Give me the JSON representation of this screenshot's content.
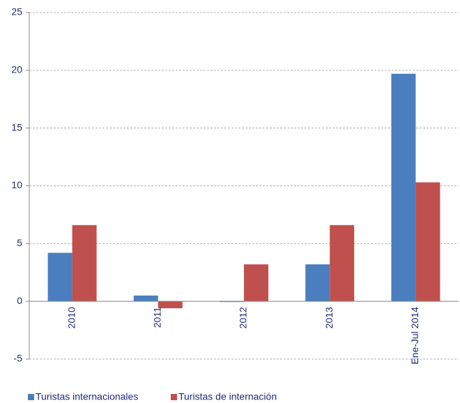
{
  "chart_data": {
    "type": "bar",
    "categories": [
      "2010",
      "2011",
      "2012",
      "2013",
      "Ene-Jul 2014"
    ],
    "series": [
      {
        "name": "Turistas internacionales",
        "color": "#4a7ebf",
        "values": [
          4.2,
          0.5,
          0.0,
          3.2,
          19.7
        ]
      },
      {
        "name": "Turistas de internación",
        "color": "#c0504d",
        "values": [
          6.6,
          -0.6,
          3.2,
          6.6,
          10.3
        ]
      }
    ],
    "ylim": [
      -5,
      25
    ],
    "yticks": [
      -5,
      0,
      5,
      10,
      15,
      20,
      25
    ],
    "grid": true
  }
}
